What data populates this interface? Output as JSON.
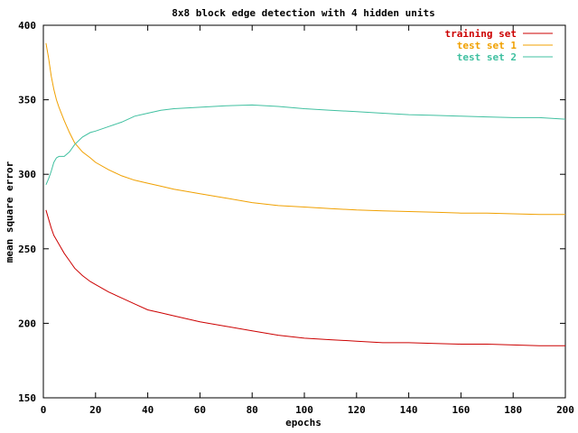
{
  "chart_data": {
    "type": "line",
    "title": "8x8 block edge detection with 4 hidden units",
    "xlabel": "epochs",
    "ylabel": "mean square error",
    "xlim": [
      0,
      200
    ],
    "ylim": [
      150,
      400
    ],
    "xticks": [
      0,
      20,
      40,
      60,
      80,
      100,
      120,
      140,
      160,
      180,
      200
    ],
    "yticks": [
      150,
      200,
      250,
      300,
      350,
      400
    ],
    "grid": false,
    "legend": "top-right",
    "series": [
      {
        "name": "training set",
        "color": "#cc0000",
        "x": [
          1,
          2,
          3,
          4,
          5,
          6,
          8,
          10,
          12,
          15,
          18,
          20,
          25,
          30,
          35,
          40,
          45,
          50,
          60,
          70,
          80,
          90,
          100,
          110,
          120,
          130,
          140,
          150,
          160,
          170,
          180,
          190,
          200
        ],
        "y": [
          276,
          270,
          264,
          259,
          256,
          253,
          247,
          242,
          237,
          232,
          228,
          226,
          221,
          217,
          213,
          209,
          207,
          205,
          201,
          198,
          195,
          192,
          190,
          189,
          188,
          187,
          187,
          186.5,
          186,
          186,
          185.5,
          185,
          185
        ]
      },
      {
        "name": "test set 1",
        "color": "#f0a000",
        "x": [
          1,
          2,
          3,
          4,
          5,
          6,
          8,
          10,
          12,
          15,
          18,
          20,
          25,
          30,
          35,
          40,
          45,
          50,
          60,
          70,
          80,
          90,
          100,
          110,
          120,
          130,
          140,
          150,
          160,
          170,
          180,
          190,
          200
        ],
        "y": [
          388,
          378,
          366,
          357,
          350,
          345,
          336,
          328,
          321,
          315,
          311,
          308,
          303,
          299,
          296,
          294,
          292,
          290,
          287,
          284,
          281,
          279,
          278,
          277,
          276,
          275.5,
          275,
          274.5,
          274,
          274,
          273.5,
          273,
          273
        ]
      },
      {
        "name": "test set 2",
        "color": "#40c0a0",
        "x": [
          1,
          2,
          3,
          4,
          5,
          6,
          8,
          10,
          12,
          15,
          18,
          20,
          25,
          30,
          35,
          40,
          45,
          50,
          60,
          70,
          80,
          90,
          100,
          110,
          120,
          130,
          140,
          150,
          160,
          170,
          180,
          190,
          200
        ],
        "y": [
          293,
          297,
          302,
          308,
          311,
          312,
          312,
          315,
          320,
          325,
          328,
          329,
          332,
          335,
          339,
          341,
          343,
          344,
          345,
          346,
          346.5,
          345.5,
          344,
          343,
          342,
          341,
          340,
          339.5,
          339,
          338.5,
          338,
          338,
          337
        ]
      }
    ]
  }
}
